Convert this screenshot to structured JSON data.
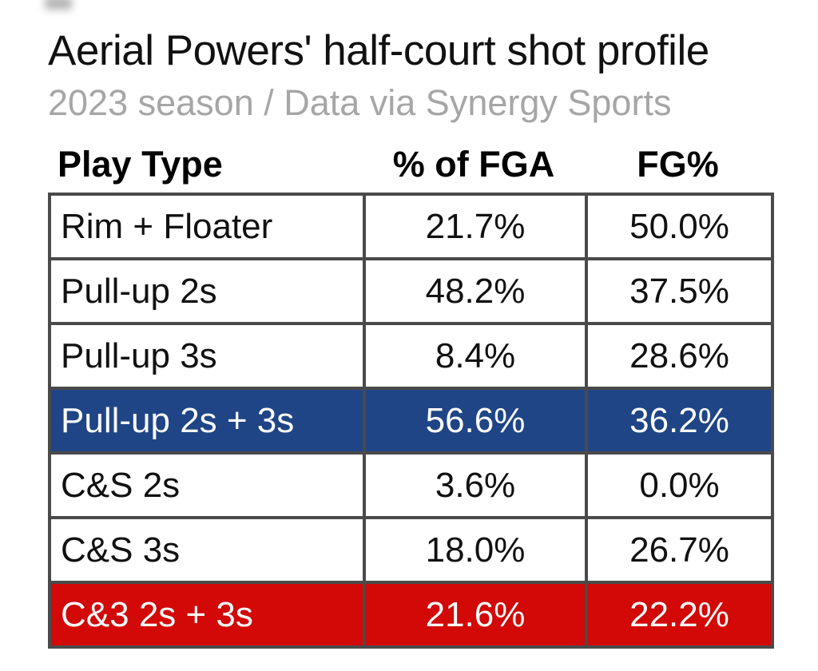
{
  "page": {
    "title": "Aerial Powers' half-court shot profile",
    "subtitle": "2023 season / Data via Synergy Sports"
  },
  "chart_data": {
    "type": "table",
    "title": "Aerial Powers' half-court shot profile",
    "subtitle": "2023 season / Data via Synergy Sports",
    "columns": [
      "Play Type",
      "% of FGA",
      "FG%"
    ],
    "rows": [
      {
        "cells": [
          "Rim + Floater",
          "21.7%",
          "50.0%"
        ],
        "highlight": "none"
      },
      {
        "cells": [
          "Pull-up 2s",
          "48.2%",
          "37.5%"
        ],
        "highlight": "none"
      },
      {
        "cells": [
          "Pull-up 3s",
          "8.4%",
          "28.6%"
        ],
        "highlight": "none"
      },
      {
        "cells": [
          "Pull-up 2s + 3s",
          "56.6%",
          "36.2%"
        ],
        "highlight": "blue"
      },
      {
        "cells": [
          "C&S 2s",
          "3.6%",
          "0.0%"
        ],
        "highlight": "none"
      },
      {
        "cells": [
          "C&S 3s",
          "18.0%",
          "26.7%"
        ],
        "highlight": "none"
      },
      {
        "cells": [
          "C&3 2s + 3s",
          "21.6%",
          "22.2%"
        ],
        "highlight": "red"
      }
    ],
    "colors": {
      "highlight_blue": "#1f4586",
      "highlight_red": "#d20907",
      "highlight_text": "#fbfbfb",
      "border": "#4a4a4a",
      "title_text": "#111111",
      "subtitle_text": "#a6a6a6",
      "body_text": "#111111",
      "background": "#ffffff"
    },
    "layout": {
      "grid": "bordered-table",
      "header_outside_borders": true,
      "value_alignment": "center",
      "label_alignment": "left"
    }
  }
}
